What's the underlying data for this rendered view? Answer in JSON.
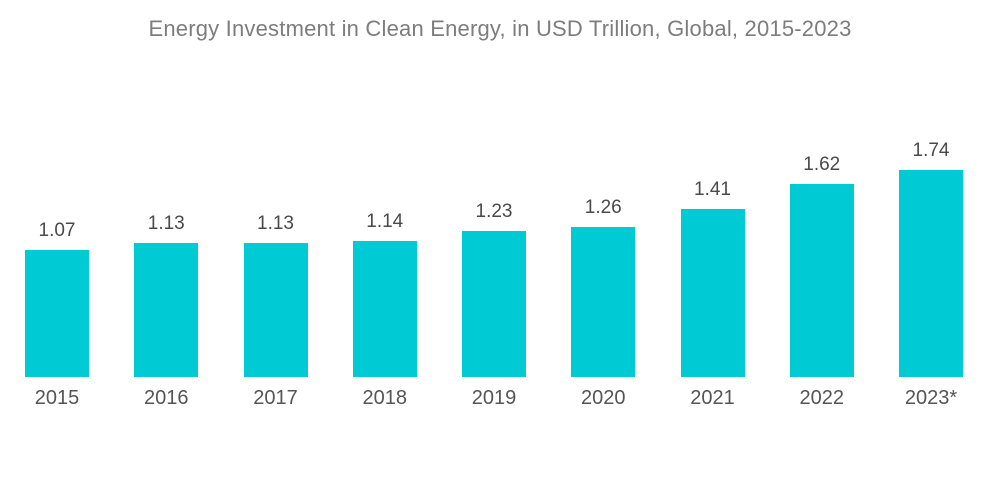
{
  "title": "Energy Investment in Clean Energy, in USD Trillion, Global, 2015-2023",
  "chart_data": {
    "type": "bar",
    "title": "Energy Investment in Clean Energy, in USD Trillion, Global, 2015-2023",
    "categories": [
      "2015",
      "2016",
      "2017",
      "2018",
      "2019",
      "2020",
      "2021",
      "2022",
      "2023*"
    ],
    "values": [
      1.07,
      1.13,
      1.13,
      1.14,
      1.23,
      1.26,
      1.41,
      1.62,
      1.74
    ],
    "value_labels": [
      "1.07",
      "1.13",
      "1.13",
      "1.14",
      "1.23",
      "1.26",
      "1.41",
      "1.62",
      "1.74"
    ],
    "xlabel": "",
    "ylabel": "",
    "ylim": [
      0,
      2
    ],
    "grid": false,
    "legend": "none",
    "data_labels_shown": true,
    "axis_lines_shown": false
  },
  "colors": {
    "bar": "#00CBD4",
    "title_text": "#7d7d7d",
    "value_label_text": "#4a4a4a",
    "axis_label_text": "#555555",
    "background": "#ffffff"
  }
}
